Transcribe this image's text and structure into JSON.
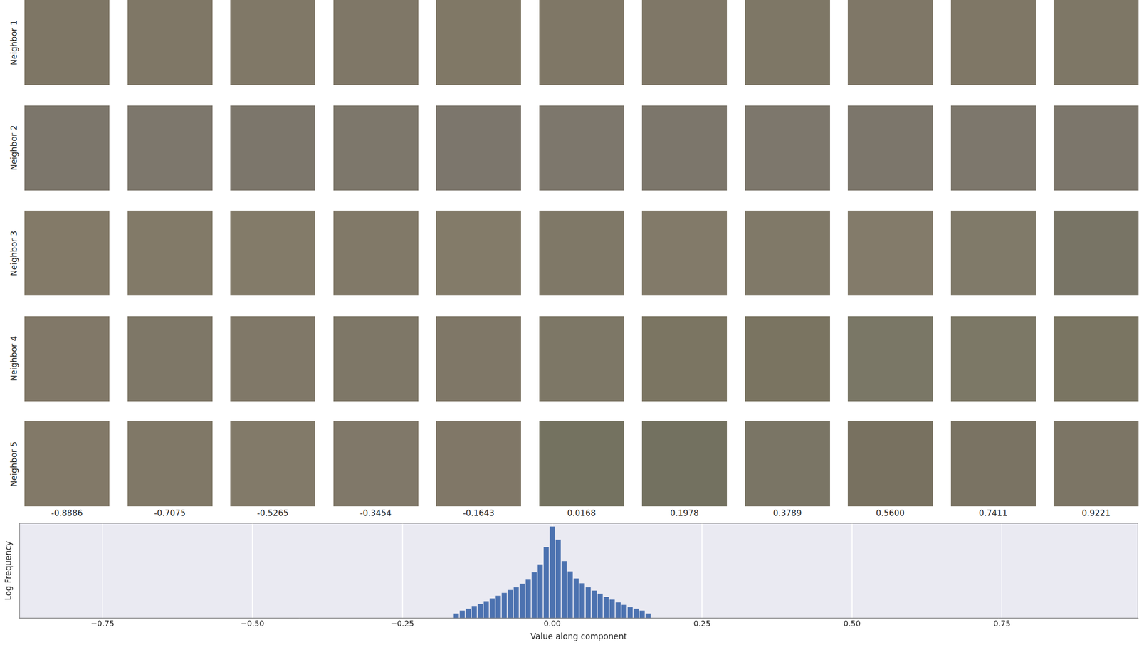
{
  "tiles": {
    "rows": [
      {
        "label": "Neighbor 1",
        "colors": [
          "#7e7665",
          "#7f7766",
          "#807867",
          "#7f7767",
          "#807866",
          "#7f7766",
          "#7f7767",
          "#7e7766",
          "#7f7767",
          "#7f7766",
          "#7e7766"
        ]
      },
      {
        "label": "Neighbor 2",
        "colors": [
          "#7c766b",
          "#7d776c",
          "#7c766b",
          "#7d776b",
          "#7c766c",
          "#7d776c",
          "#7c766b",
          "#7d776c",
          "#7c766b",
          "#7d776c",
          "#7c766b"
        ]
      },
      {
        "label": "Neighbor 3",
        "colors": [
          "#837a68",
          "#827a68",
          "#837b69",
          "#817968",
          "#837b69",
          "#7f7867",
          "#827a69",
          "#807968",
          "#837b6a",
          "#807a69",
          "#787465"
        ]
      },
      {
        "label": "Neighbor 4",
        "colors": [
          "#817868",
          "#7e7767",
          "#807868",
          "#7e7767",
          "#7f7767",
          "#7d7766",
          "#7b7562",
          "#7a7461",
          "#7a7766",
          "#7c7866",
          "#7a7562"
        ]
      },
      {
        "label": "Neighbor 5",
        "colors": [
          "#827968",
          "#807867",
          "#827a69",
          "#807869",
          "#807767",
          "#747260",
          "#737160",
          "#7a7565",
          "#787160",
          "#7a7363",
          "#7c7565"
        ]
      }
    ],
    "column_labels": [
      "-0.8886",
      "-0.7075",
      "-0.5265",
      "-0.3454",
      "-0.1643",
      "0.0168",
      "0.1978",
      "0.3789",
      "0.5600",
      "0.7411",
      "0.9221"
    ]
  },
  "chart_data": {
    "type": "histogram",
    "x_label": "Value along component",
    "y_label": "Log Frequency",
    "bins": [
      -0.165,
      -0.155,
      -0.145,
      -0.135,
      -0.125,
      -0.115,
      -0.105,
      -0.095,
      -0.085,
      -0.075,
      -0.065,
      -0.055,
      -0.045,
      -0.035,
      -0.025,
      -0.015,
      -0.005,
      0.005,
      0.015,
      0.025,
      0.035,
      0.045,
      0.055,
      0.065,
      0.075,
      0.085,
      0.095,
      0.105,
      0.115,
      0.125,
      0.135,
      0.145,
      0.155,
      0.165
    ],
    "values": [
      2,
      3,
      4,
      6,
      8,
      12,
      18,
      26,
      40,
      60,
      90,
      150,
      300,
      800,
      2500,
      30000,
      600000,
      90000,
      4000,
      900,
      320,
      160,
      90,
      55,
      35,
      22,
      15,
      10,
      7,
      5,
      4,
      3,
      2
    ],
    "color": "#4c72b0",
    "log": "y",
    "xlim": [
      -0.8886,
      0.977
    ],
    "ylim": [
      1,
      1000000
    ],
    "xticks": [
      {
        "value": -0.75,
        "label": "−0.75"
      },
      {
        "value": -0.5,
        "label": "−0.50"
      },
      {
        "value": -0.25,
        "label": "−0.25"
      },
      {
        "value": 0,
        "label": "0.00"
      },
      {
        "value": 0.25,
        "label": "0.25"
      },
      {
        "value": 0.5,
        "label": "0.50"
      },
      {
        "value": 0.75,
        "label": "0.75"
      }
    ],
    "grid": true,
    "tick_labels": "x"
  }
}
